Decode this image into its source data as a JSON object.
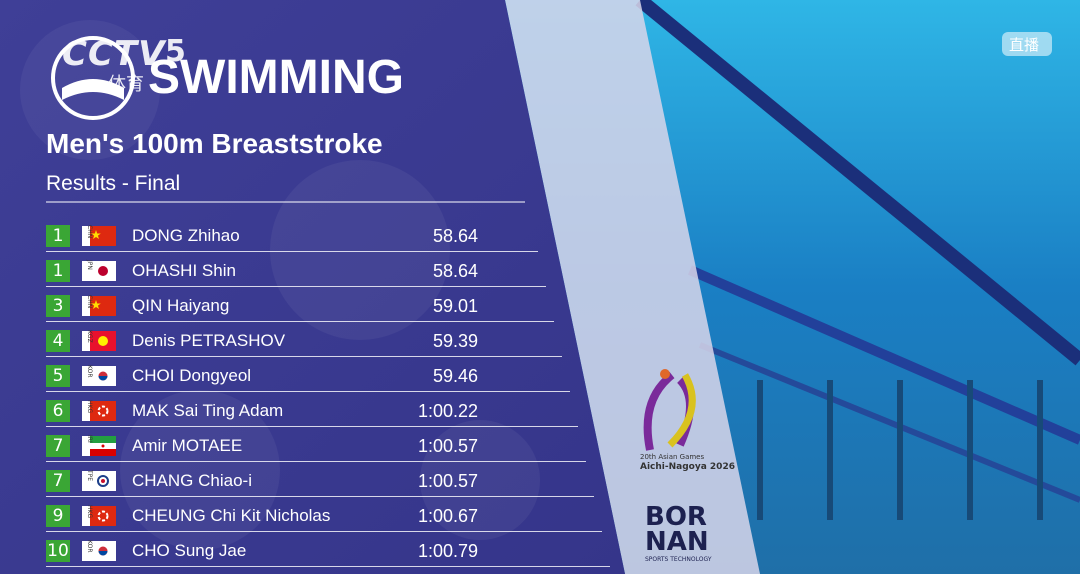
{
  "logo": {
    "channel": "CCTV",
    "number": "5",
    "sport": "体育"
  },
  "live_badge": "直播",
  "header": {
    "title": "SWIMMING",
    "event": "Men's 100m Breaststroke",
    "phase": "Results - Final"
  },
  "table": {
    "rows": [
      [
        1,
        "CHN",
        "DONG Zhihao",
        "58.64"
      ],
      [
        1,
        "JPN",
        "OHASHI Shin",
        "58.64"
      ],
      [
        3,
        "CHN",
        "QIN Haiyang",
        "59.01"
      ],
      [
        4,
        "KGZ",
        "Denis PETRASHOV",
        "59.39"
      ],
      [
        5,
        "KOR",
        "CHOI Dongyeol",
        "59.46"
      ],
      [
        6,
        "HKG",
        "MAK Sai Ting Adam",
        "1:00.22"
      ],
      [
        7,
        "IRI",
        "Amir MOTAEE",
        "1:00.57"
      ],
      [
        7,
        "TPE",
        "CHANG Chiao-i",
        "1:00.57"
      ],
      [
        9,
        "HKG",
        "CHEUNG Chi Kit Nicholas",
        "1:00.67"
      ],
      [
        10,
        "KOR",
        "CHO Sung Jae",
        "1:00.79"
      ]
    ]
  },
  "sponsors": {
    "games": [
      "20th Asian Games",
      "Aichi-Nagoya 2026"
    ],
    "timing": {
      "name": [
        "BOR",
        "NAN"
      ],
      "tagline": "SPORTS TECHNOLOGY"
    }
  }
}
